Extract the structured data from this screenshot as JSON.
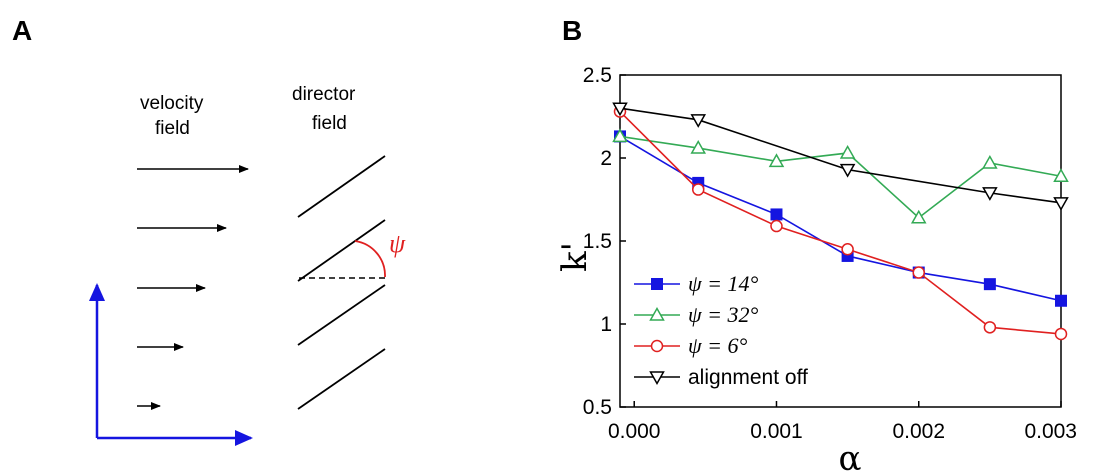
{
  "panel_a": {
    "letter": "A",
    "velocity_label_line1": "velocity",
    "velocity_label_line2": "field",
    "director_label_line1": "director",
    "director_label_line2": "field",
    "angle_symbol": "ψ",
    "colors": {
      "axes": "#1515e0",
      "angle": "#e02020"
    }
  },
  "panel_b": {
    "letter": "B",
    "legend": [
      {
        "text": "ψ = 14°",
        "color": "#1515e0",
        "marker": "square-filled"
      },
      {
        "text": "ψ = 32°",
        "color": "#33aa55",
        "marker": "triangle-up-open"
      },
      {
        "text": "ψ = 6°",
        "color": "#e02020",
        "marker": "circle-open"
      },
      {
        "text": "alignment off",
        "color": "#000000",
        "marker": "triangle-down-open"
      }
    ]
  },
  "chart_data": {
    "type": "line",
    "title": "",
    "xlabel": "α",
    "ylabel": "k'",
    "xlim": [
      -0.0001,
      0.003
    ],
    "ylim": [
      0.5,
      2.5
    ],
    "xticks": [
      0.0,
      0.001,
      0.002,
      0.003
    ],
    "xtick_labels": [
      "0.000",
      "0.001",
      "0.002",
      "0.003"
    ],
    "yticks": [
      0.5,
      1,
      1.5,
      2,
      2.5
    ],
    "ytick_labels": [
      "0.5",
      "1",
      "1.5",
      "2",
      "2.5"
    ],
    "grid": false,
    "legend_position": "bottom-left",
    "series": [
      {
        "name": "ψ = 14°",
        "color": "#1515e0",
        "marker": "square-filled",
        "x": [
          -0.0001,
          0.00045,
          0.001,
          0.0015,
          0.002,
          0.0025,
          0.003
        ],
        "y": [
          2.13,
          1.85,
          1.66,
          1.41,
          1.31,
          1.24,
          1.14
        ]
      },
      {
        "name": "ψ = 32°",
        "color": "#33aa55",
        "marker": "triangle-up-open",
        "x": [
          -0.0001,
          0.00045,
          0.001,
          0.0015,
          0.002,
          0.0025,
          0.003
        ],
        "y": [
          2.13,
          2.06,
          1.98,
          2.03,
          1.64,
          1.97,
          1.89
        ]
      },
      {
        "name": "ψ = 6°",
        "color": "#e02020",
        "marker": "circle-open",
        "x": [
          -0.0001,
          0.00045,
          0.001,
          0.0015,
          0.002,
          0.0025,
          0.003
        ],
        "y": [
          2.28,
          1.81,
          1.59,
          1.45,
          1.31,
          0.98,
          0.94
        ]
      },
      {
        "name": "alignment off",
        "color": "#000000",
        "marker": "triangle-down-open",
        "x": [
          -0.0001,
          0.00045,
          0.0015,
          0.0025,
          0.003
        ],
        "y": [
          2.3,
          2.23,
          1.93,
          1.79,
          1.73
        ]
      }
    ]
  }
}
